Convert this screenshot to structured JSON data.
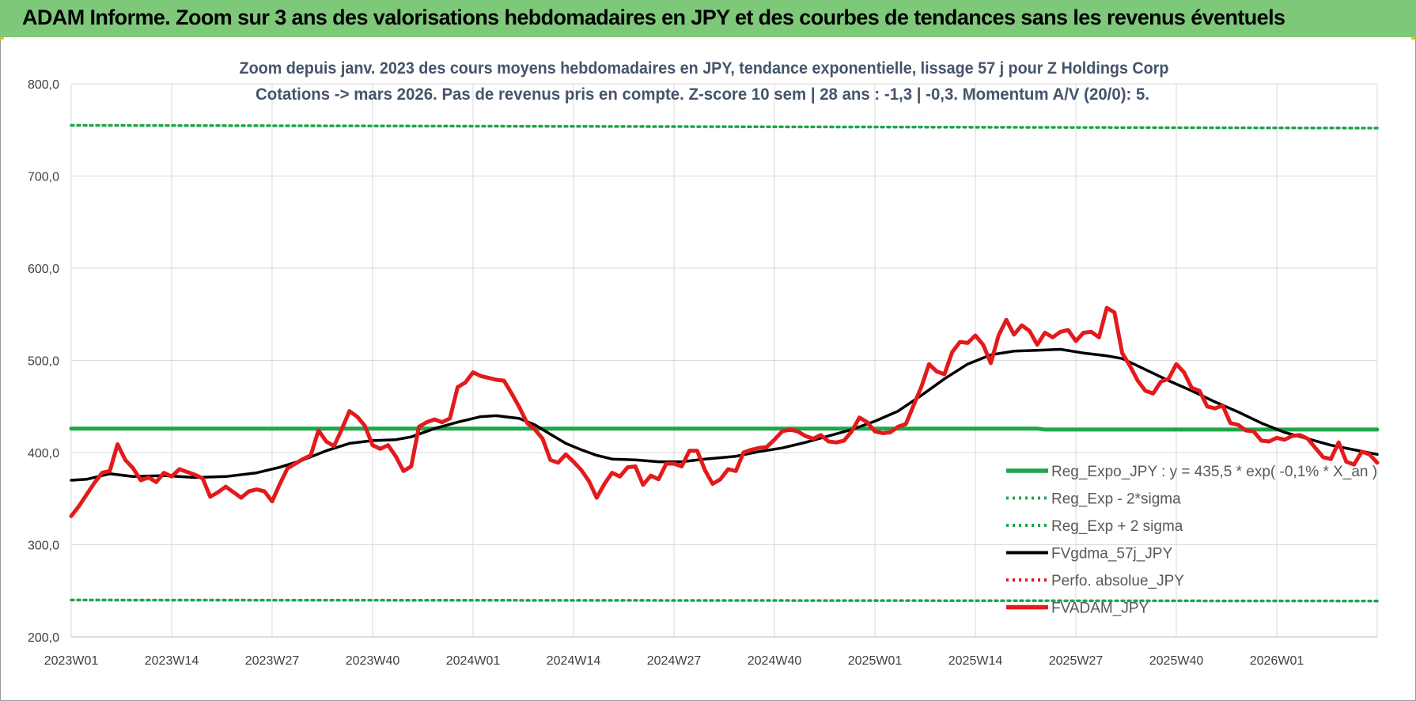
{
  "banner": {
    "title": "ADAM Informe. Zoom sur 3 ans des valorisations hebdomadaires en JPY et des courbes de tendances sans les revenus éventuels",
    "background": "#7ec87a"
  },
  "chart_data": {
    "type": "line",
    "title_line1": "Zoom depuis janv. 2023 des cours moyens hebdomadaires en JPY, tendance exponentielle, lissage 57 j pour Z Holdings Corp",
    "title_line2": "Cotations -> mars 2026. Pas de revenus pris en compte. Z-score 10 sem | 28 ans : -1,3 | -0,3. Momentum A/V (20/0): 5.",
    "xlabel": "",
    "ylabel": "",
    "ylim": [
      200,
      800
    ],
    "yticks": [
      "800,0",
      "700,0",
      "600,0",
      "500,0",
      "400,0",
      "300,0",
      "200,0"
    ],
    "x_tick_labels": [
      "2023W01",
      "2023W14",
      "2023W27",
      "2023W40",
      "2024W01",
      "2024W14",
      "2024W27",
      "2024W40",
      "2025W01",
      "2025W14",
      "2025W27",
      "2025W40",
      "2026W01"
    ],
    "x_tick_week_index": [
      0,
      13,
      26,
      39,
      52,
      65,
      78,
      91,
      104,
      117,
      130,
      143,
      156
    ],
    "x_range_weeks": [
      0,
      169
    ],
    "grid": true,
    "legend_position": "bottom-right",
    "series": [
      {
        "name": "Reg_Expo_JPY : y = 435,5 * exp( -0,1% *  X_an )",
        "color": "#1fa64a",
        "style": "solid-thick",
        "points": [
          [
            0,
            426
          ],
          [
            125,
            426
          ],
          [
            126,
            425
          ],
          [
            169,
            425
          ]
        ]
      },
      {
        "name": "Reg_Exp - 2*sigma",
        "color": "#1fa64a",
        "style": "dotted",
        "points": [
          [
            0,
            240
          ],
          [
            169,
            239
          ]
        ]
      },
      {
        "name": "Reg_Exp + 2 sigma",
        "color": "#1fa64a",
        "style": "dotted",
        "points": [
          [
            0,
            755
          ],
          [
            169,
            752
          ]
        ]
      },
      {
        "name": "FVgdma_57j_JPY",
        "color": "#000000",
        "style": "solid",
        "points": [
          [
            0,
            370
          ],
          [
            2,
            371
          ],
          [
            5,
            377
          ],
          [
            8,
            374
          ],
          [
            12,
            375
          ],
          [
            16,
            373
          ],
          [
            20,
            374
          ],
          [
            24,
            378
          ],
          [
            27,
            384
          ],
          [
            30,
            392
          ],
          [
            33,
            402
          ],
          [
            36,
            410
          ],
          [
            39,
            413
          ],
          [
            42,
            414
          ],
          [
            44,
            417
          ],
          [
            47,
            426
          ],
          [
            50,
            433
          ],
          [
            53,
            439
          ],
          [
            55,
            440
          ],
          [
            58,
            437
          ],
          [
            60,
            430
          ],
          [
            62,
            420
          ],
          [
            64,
            410
          ],
          [
            66,
            403
          ],
          [
            68,
            397
          ],
          [
            70,
            393
          ],
          [
            73,
            392
          ],
          [
            76,
            390
          ],
          [
            79,
            390
          ],
          [
            82,
            393
          ],
          [
            86,
            396
          ],
          [
            89,
            401
          ],
          [
            92,
            405
          ],
          [
            95,
            411
          ],
          [
            98,
            418
          ],
          [
            101,
            425
          ],
          [
            104,
            434
          ],
          [
            107,
            445
          ],
          [
            110,
            462
          ],
          [
            113,
            480
          ],
          [
            116,
            496
          ],
          [
            119,
            506
          ],
          [
            122,
            510
          ],
          [
            125,
            511
          ],
          [
            128,
            512
          ],
          [
            131,
            508
          ],
          [
            134,
            505
          ],
          [
            136,
            502
          ],
          [
            139,
            490
          ],
          [
            142,
            478
          ],
          [
            145,
            467
          ],
          [
            148,
            455
          ],
          [
            151,
            444
          ],
          [
            154,
            432
          ],
          [
            157,
            422
          ],
          [
            160,
            415
          ],
          [
            163,
            408
          ],
          [
            166,
            403
          ],
          [
            169,
            398
          ]
        ]
      },
      {
        "name": "Perfo. absolue_JPY",
        "color": "#e31a1c",
        "style": "dotted",
        "points": []
      },
      {
        "name": "FVADAM_JPY",
        "color": "#e31a1c",
        "style": "solid-thick",
        "points": [
          [
            0,
            331
          ],
          [
            1,
            342
          ],
          [
            3,
            367
          ],
          [
            4,
            378
          ],
          [
            5,
            380
          ],
          [
            6,
            409
          ],
          [
            7,
            392
          ],
          [
            8,
            383
          ],
          [
            9,
            370
          ],
          [
            10,
            373
          ],
          [
            11,
            368
          ],
          [
            12,
            378
          ],
          [
            13,
            374
          ],
          [
            14,
            382
          ],
          [
            15,
            379
          ],
          [
            16,
            376
          ],
          [
            17,
            372
          ],
          [
            18,
            352
          ],
          [
            19,
            357
          ],
          [
            20,
            363
          ],
          [
            21,
            357
          ],
          [
            22,
            351
          ],
          [
            23,
            358
          ],
          [
            24,
            360
          ],
          [
            25,
            358
          ],
          [
            26,
            347
          ],
          [
            27,
            366
          ],
          [
            28,
            383
          ],
          [
            29,
            388
          ],
          [
            30,
            393
          ],
          [
            31,
            397
          ],
          [
            32,
            424
          ],
          [
            33,
            412
          ],
          [
            34,
            407
          ],
          [
            35,
            425
          ],
          [
            36,
            445
          ],
          [
            37,
            439
          ],
          [
            38,
            429
          ],
          [
            39,
            408
          ],
          [
            40,
            404
          ],
          [
            41,
            408
          ],
          [
            42,
            396
          ],
          [
            43,
            380
          ],
          [
            44,
            385
          ],
          [
            45,
            428
          ],
          [
            46,
            433
          ],
          [
            47,
            436
          ],
          [
            48,
            433
          ],
          [
            49,
            437
          ],
          [
            50,
            471
          ],
          [
            51,
            476
          ],
          [
            52,
            487
          ],
          [
            53,
            483
          ],
          [
            54,
            481
          ],
          [
            55,
            479
          ],
          [
            56,
            478
          ],
          [
            57,
            464
          ],
          [
            58,
            449
          ],
          [
            59,
            432
          ],
          [
            60,
            425
          ],
          [
            61,
            415
          ],
          [
            62,
            392
          ],
          [
            63,
            389
          ],
          [
            64,
            398
          ],
          [
            65,
            390
          ],
          [
            66,
            381
          ],
          [
            67,
            369
          ],
          [
            68,
            351
          ],
          [
            69,
            366
          ],
          [
            70,
            378
          ],
          [
            71,
            374
          ],
          [
            72,
            384
          ],
          [
            73,
            385
          ],
          [
            74,
            365
          ],
          [
            75,
            375
          ],
          [
            76,
            371
          ],
          [
            77,
            388
          ],
          [
            78,
            388
          ],
          [
            79,
            385
          ],
          [
            80,
            402
          ],
          [
            81,
            402
          ],
          [
            82,
            381
          ],
          [
            83,
            366
          ],
          [
            84,
            371
          ],
          [
            85,
            382
          ],
          [
            86,
            380
          ],
          [
            87,
            400
          ],
          [
            88,
            403
          ],
          [
            89,
            405
          ],
          [
            90,
            406
          ],
          [
            91,
            414
          ],
          [
            92,
            423
          ],
          [
            93,
            425
          ],
          [
            94,
            423
          ],
          [
            95,
            418
          ],
          [
            96,
            415
          ],
          [
            97,
            419
          ],
          [
            98,
            412
          ],
          [
            99,
            411
          ],
          [
            100,
            413
          ],
          [
            101,
            423
          ],
          [
            102,
            438
          ],
          [
            103,
            433
          ],
          [
            104,
            423
          ],
          [
            105,
            421
          ],
          [
            106,
            422
          ],
          [
            107,
            428
          ],
          [
            108,
            431
          ],
          [
            109,
            451
          ],
          [
            110,
            471
          ],
          [
            111,
            496
          ],
          [
            112,
            488
          ],
          [
            113,
            485
          ],
          [
            114,
            509
          ],
          [
            115,
            520
          ],
          [
            116,
            519
          ],
          [
            117,
            527
          ],
          [
            118,
            517
          ],
          [
            119,
            497
          ],
          [
            120,
            527
          ],
          [
            121,
            544
          ],
          [
            122,
            528
          ],
          [
            123,
            538
          ],
          [
            124,
            532
          ],
          [
            125,
            517
          ],
          [
            126,
            530
          ],
          [
            127,
            525
          ],
          [
            128,
            531
          ],
          [
            129,
            533
          ],
          [
            130,
            521
          ],
          [
            131,
            530
          ],
          [
            132,
            531
          ],
          [
            133,
            525
          ],
          [
            134,
            557
          ],
          [
            135,
            552
          ],
          [
            136,
            508
          ],
          [
            137,
            494
          ],
          [
            138,
            478
          ],
          [
            139,
            467
          ],
          [
            140,
            464
          ],
          [
            141,
            477
          ],
          [
            142,
            480
          ],
          [
            143,
            496
          ],
          [
            144,
            487
          ],
          [
            145,
            470
          ],
          [
            146,
            467
          ],
          [
            147,
            450
          ],
          [
            148,
            448
          ],
          [
            149,
            451
          ],
          [
            150,
            432
          ],
          [
            151,
            430
          ],
          [
            152,
            424
          ],
          [
            153,
            423
          ],
          [
            154,
            413
          ],
          [
            155,
            412
          ],
          [
            156,
            416
          ],
          [
            157,
            414
          ],
          [
            158,
            418
          ],
          [
            159,
            419
          ],
          [
            160,
            415
          ],
          [
            161,
            405
          ],
          [
            162,
            395
          ],
          [
            163,
            393
          ],
          [
            164,
            411
          ],
          [
            165,
            390
          ],
          [
            166,
            387
          ],
          [
            167,
            401
          ],
          [
            168,
            398
          ],
          [
            169,
            389
          ]
        ]
      }
    ]
  }
}
